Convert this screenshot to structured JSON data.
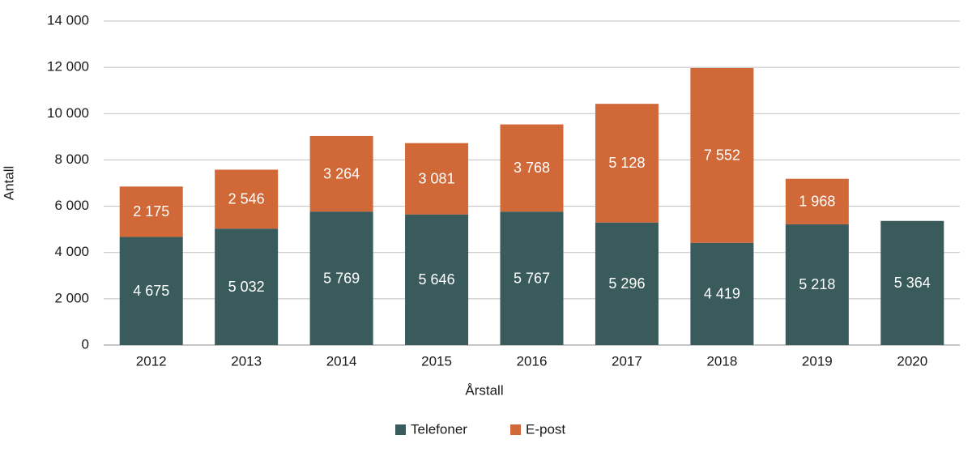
{
  "chart_data": {
    "type": "bar",
    "stacked": true,
    "categories": [
      "2012",
      "2013",
      "2014",
      "2015",
      "2016",
      "2017",
      "2018",
      "2019",
      "2020"
    ],
    "series": [
      {
        "name": "Telefoner",
        "color": "#3a5b5c",
        "values": [
          4675,
          5032,
          5769,
          5646,
          5767,
          5296,
          4419,
          5218,
          5364
        ],
        "value_labels": [
          "4 675",
          "5 032",
          "5 769",
          "5 646",
          "5 767",
          "5 296",
          "4 419",
          "5 218",
          "5 364"
        ]
      },
      {
        "name": "E-post",
        "color": "#d06837",
        "values": [
          2175,
          2546,
          3264,
          3081,
          3768,
          5128,
          7552,
          1968,
          null
        ],
        "value_labels": [
          "2 175",
          "2 546",
          "3 264",
          "3 081",
          "3 768",
          "5 128",
          "7 552",
          "1 968",
          null
        ]
      }
    ],
    "x_label": "Årstall",
    "y_label": "Antall",
    "ylim": [
      0,
      14000
    ],
    "yticks": [
      0,
      {
        "value": 2000,
        "label": "2 000"
      },
      {
        "value": 4000,
        "label": "4 000"
      },
      {
        "value": 6000,
        "label": "6 000"
      },
      {
        "value": 8000,
        "label": "8 000"
      },
      {
        "value": 10000,
        "label": "10 000"
      },
      {
        "value": 12000,
        "label": "12 000"
      },
      {
        "value": 14000,
        "label": "14 000"
      }
    ],
    "grid": true,
    "legend": "bottom"
  }
}
